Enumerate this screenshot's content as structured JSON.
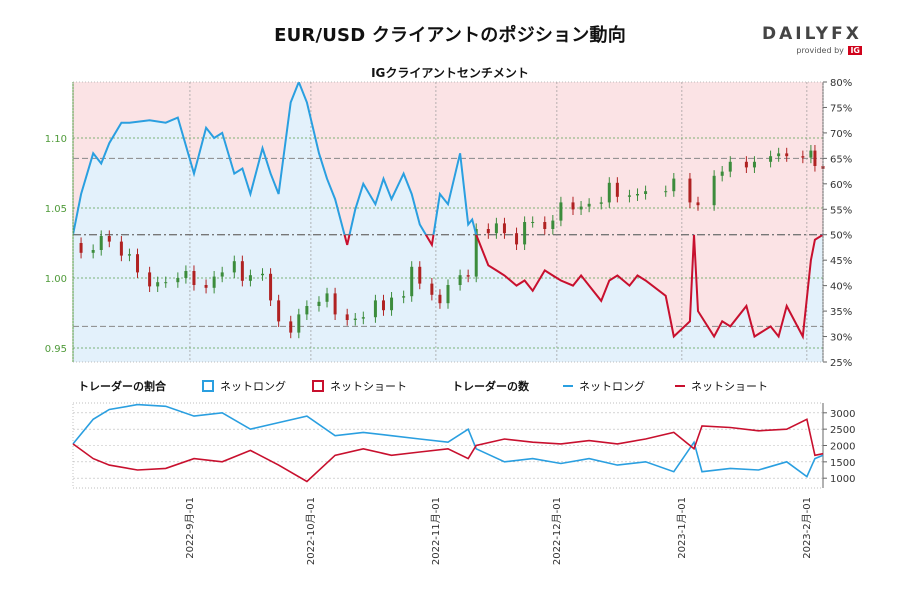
{
  "title": "EUR/USD クライアントのポジション動向",
  "brand": {
    "name_part1": "DAILY",
    "name_part2": "FX",
    "provided_by": "provided by",
    "provider": "IG"
  },
  "subtitle": "IGクライアントセンチメント",
  "legend": {
    "ratio_label": "トレーダーの割合",
    "ratio_long": "ネットロング",
    "ratio_short": "ネットショート",
    "count_label": "トレーダーの数",
    "count_long": "ネットロング",
    "count_short": "ネットショート"
  },
  "colors": {
    "long": "#2a9fe0",
    "short": "#c8102e",
    "long_fill": "#e3f1fb",
    "short_fill": "#fbe3e5",
    "candle_up": "#3c8c3c",
    "candle_down": "#b02222",
    "price_axis": "#4f9a3a"
  },
  "chart_data": [
    {
      "type": "line",
      "title": "IGクライアントセンチメント",
      "description_axes": "left axis: EUR/USD price; right axis: percent of clients net long",
      "price_axis": {
        "ticks": [
          "0.95",
          "1.00",
          "1.05",
          "1.10"
        ],
        "ylim": [
          0.94,
          1.14
        ]
      },
      "percent_axis": {
        "ticks": [
          "25%",
          "30%",
          "35%",
          "40%",
          "45%",
          "50%",
          "55%",
          "60%",
          "65%",
          "70%",
          "75%",
          "80%"
        ],
        "ylim": [
          25,
          80
        ]
      },
      "x_ticks": [
        "2022-9月-01",
        "2022-10月-01",
        "2022-11月-01",
        "2022-12月-01",
        "2023-1月-01",
        "2023-2月-01"
      ],
      "x_range": [
        "2022-08-03",
        "2023-02-05"
      ],
      "price_points": [
        [
          "2022-08-03",
          1.025
        ],
        [
          "2022-08-05",
          1.018
        ],
        [
          "2022-08-08",
          1.02
        ],
        [
          "2022-08-10",
          1.03
        ],
        [
          "2022-08-12",
          1.026
        ],
        [
          "2022-08-15",
          1.016
        ],
        [
          "2022-08-17",
          1.017
        ],
        [
          "2022-08-19",
          1.004
        ],
        [
          "2022-08-22",
          0.994
        ],
        [
          "2022-08-24",
          0.997
        ],
        [
          "2022-08-26",
          0.997
        ],
        [
          "2022-08-29",
          1.0
        ],
        [
          "2022-08-31",
          1.005
        ],
        [
          "2022-09-02",
          0.995
        ],
        [
          "2022-09-05",
          0.993
        ],
        [
          "2022-09-07",
          1.001
        ],
        [
          "2022-09-09",
          1.004
        ],
        [
          "2022-09-12",
          1.012
        ],
        [
          "2022-09-14",
          0.998
        ],
        [
          "2022-09-16",
          1.002
        ],
        [
          "2022-09-19",
          1.003
        ],
        [
          "2022-09-21",
          0.984
        ],
        [
          "2022-09-23",
          0.969
        ],
        [
          "2022-09-26",
          0.961
        ],
        [
          "2022-09-28",
          0.974
        ],
        [
          "2022-09-30",
          0.98
        ],
        [
          "2022-10-03",
          0.983
        ],
        [
          "2022-10-05",
          0.989
        ],
        [
          "2022-10-07",
          0.974
        ],
        [
          "2022-10-10",
          0.97
        ],
        [
          "2022-10-12",
          0.971
        ],
        [
          "2022-10-14",
          0.972
        ],
        [
          "2022-10-17",
          0.984
        ],
        [
          "2022-10-19",
          0.977
        ],
        [
          "2022-10-21",
          0.986
        ],
        [
          "2022-10-24",
          0.987
        ],
        [
          "2022-10-26",
          1.008
        ],
        [
          "2022-10-28",
          0.996
        ],
        [
          "2022-10-31",
          0.988
        ],
        [
          "2022-11-02",
          0.982
        ],
        [
          "2022-11-04",
          0.995
        ],
        [
          "2022-11-07",
          1.002
        ],
        [
          "2022-11-09",
          1.001
        ],
        [
          "2022-11-11",
          1.035
        ],
        [
          "2022-11-14",
          1.032
        ],
        [
          "2022-11-16",
          1.039
        ],
        [
          "2022-11-18",
          1.032
        ],
        [
          "2022-11-21",
          1.024
        ],
        [
          "2022-11-23",
          1.04
        ],
        [
          "2022-11-25",
          1.04
        ],
        [
          "2022-11-28",
          1.035
        ],
        [
          "2022-11-30",
          1.041
        ],
        [
          "2022-12-02",
          1.054
        ],
        [
          "2022-12-05",
          1.049
        ],
        [
          "2022-12-07",
          1.051
        ],
        [
          "2022-12-09",
          1.053
        ],
        [
          "2022-12-12",
          1.054
        ],
        [
          "2022-12-14",
          1.068
        ],
        [
          "2022-12-16",
          1.058
        ],
        [
          "2022-12-19",
          1.059
        ],
        [
          "2022-12-21",
          1.06
        ],
        [
          "2022-12-23",
          1.062
        ],
        [
          "2022-12-28",
          1.062
        ],
        [
          "2022-12-30",
          1.071
        ],
        [
          "2023-01-03",
          1.054
        ],
        [
          "2023-01-05",
          1.052
        ],
        [
          "2023-01-09",
          1.073
        ],
        [
          "2023-01-11",
          1.076
        ],
        [
          "2023-01-13",
          1.083
        ],
        [
          "2023-01-17",
          1.079
        ],
        [
          "2023-01-19",
          1.083
        ],
        [
          "2023-01-23",
          1.087
        ],
        [
          "2023-01-25",
          1.089
        ],
        [
          "2023-01-27",
          1.087
        ],
        [
          "2023-01-31",
          1.086
        ],
        [
          "2023-02-02",
          1.091
        ],
        [
          "2023-02-03",
          1.08
        ],
        [
          "2023-02-05",
          1.078
        ]
      ],
      "long_pct_points": [
        [
          "2022-08-03",
          50
        ],
        [
          "2022-08-05",
          58
        ],
        [
          "2022-08-08",
          66
        ],
        [
          "2022-08-10",
          64
        ],
        [
          "2022-08-12",
          68
        ],
        [
          "2022-08-15",
          72
        ],
        [
          "2022-08-17",
          72
        ],
        [
          "2022-08-22",
          72.5
        ],
        [
          "2022-08-26",
          72
        ],
        [
          "2022-08-29",
          73
        ],
        [
          "2022-09-02",
          62
        ],
        [
          "2022-09-05",
          71
        ],
        [
          "2022-09-07",
          69
        ],
        [
          "2022-09-09",
          70
        ],
        [
          "2022-09-12",
          62
        ],
        [
          "2022-09-14",
          63
        ],
        [
          "2022-09-16",
          58
        ],
        [
          "2022-09-19",
          67
        ],
        [
          "2022-09-21",
          62
        ],
        [
          "2022-09-23",
          58
        ],
        [
          "2022-09-26",
          76
        ],
        [
          "2022-09-28",
          80
        ],
        [
          "2022-09-30",
          76
        ],
        [
          "2022-10-03",
          66
        ],
        [
          "2022-10-05",
          61
        ],
        [
          "2022-10-07",
          57
        ],
        [
          "2022-10-10",
          48
        ],
        [
          "2022-10-12",
          55
        ],
        [
          "2022-10-14",
          60
        ],
        [
          "2022-10-17",
          56
        ],
        [
          "2022-10-19",
          61
        ],
        [
          "2022-10-21",
          57
        ],
        [
          "2022-10-24",
          62
        ],
        [
          "2022-10-26",
          58
        ],
        [
          "2022-10-28",
          52
        ],
        [
          "2022-10-31",
          48
        ],
        [
          "2022-11-02",
          58
        ],
        [
          "2022-11-04",
          56
        ],
        [
          "2022-11-07",
          66
        ],
        [
          "2022-11-09",
          52
        ],
        [
          "2022-11-10",
          53
        ],
        [
          "2022-11-11",
          50
        ],
        [
          "2022-11-14",
          44
        ],
        [
          "2022-11-16",
          43
        ],
        [
          "2022-11-18",
          42
        ],
        [
          "2022-11-21",
          40
        ],
        [
          "2022-11-23",
          41
        ],
        [
          "2022-11-25",
          39
        ],
        [
          "2022-11-28",
          43
        ],
        [
          "2022-11-30",
          42
        ],
        [
          "2022-12-02",
          41
        ],
        [
          "2022-12-05",
          40
        ],
        [
          "2022-12-07",
          42
        ],
        [
          "2022-12-09",
          40
        ],
        [
          "2022-12-12",
          37
        ],
        [
          "2022-12-14",
          41
        ],
        [
          "2022-12-16",
          42
        ],
        [
          "2022-12-19",
          40
        ],
        [
          "2022-12-21",
          42
        ],
        [
          "2022-12-23",
          41
        ],
        [
          "2022-12-28",
          38
        ],
        [
          "2022-12-30",
          30
        ],
        [
          "2023-01-03",
          33
        ],
        [
          "2023-01-04",
          50
        ],
        [
          "2023-01-05",
          35
        ],
        [
          "2023-01-09",
          30
        ],
        [
          "2023-01-11",
          33
        ],
        [
          "2023-01-13",
          32
        ],
        [
          "2023-01-17",
          36
        ],
        [
          "2023-01-19",
          30
        ],
        [
          "2023-01-23",
          32
        ],
        [
          "2023-01-25",
          30
        ],
        [
          "2023-01-27",
          36
        ],
        [
          "2023-01-31",
          30
        ],
        [
          "2023-02-02",
          45
        ],
        [
          "2023-02-03",
          49
        ],
        [
          "2023-02-05",
          50
        ]
      ]
    },
    {
      "type": "line",
      "title": "トレーダーの数",
      "y_ticks": [
        "1000",
        "1500",
        "2000",
        "2500",
        "3000"
      ],
      "ylim": [
        700,
        3300
      ],
      "series": [
        {
          "name": "ネットロング",
          "points": [
            [
              "2022-08-03",
              2050
            ],
            [
              "2022-08-08",
              2800
            ],
            [
              "2022-08-12",
              3100
            ],
            [
              "2022-08-19",
              3250
            ],
            [
              "2022-08-26",
              3200
            ],
            [
              "2022-09-02",
              2900
            ],
            [
              "2022-09-09",
              3000
            ],
            [
              "2022-09-16",
              2500
            ],
            [
              "2022-09-23",
              2700
            ],
            [
              "2022-09-30",
              2900
            ],
            [
              "2022-10-07",
              2300
            ],
            [
              "2022-10-14",
              2400
            ],
            [
              "2022-10-21",
              2300
            ],
            [
              "2022-10-28",
              2200
            ],
            [
              "2022-11-04",
              2100
            ],
            [
              "2022-11-09",
              2500
            ],
            [
              "2022-11-11",
              1900
            ],
            [
              "2022-11-18",
              1500
            ],
            [
              "2022-11-25",
              1600
            ],
            [
              "2022-12-02",
              1450
            ],
            [
              "2022-12-09",
              1600
            ],
            [
              "2022-12-16",
              1400
            ],
            [
              "2022-12-23",
              1500
            ],
            [
              "2022-12-30",
              1200
            ],
            [
              "2023-01-04",
              2100
            ],
            [
              "2023-01-06",
              1200
            ],
            [
              "2023-01-13",
              1300
            ],
            [
              "2023-01-20",
              1250
            ],
            [
              "2023-01-27",
              1500
            ],
            [
              "2023-02-01",
              1050
            ],
            [
              "2023-02-03",
              1600
            ],
            [
              "2023-02-05",
              1700
            ]
          ]
        },
        {
          "name": "ネットショート",
          "points": [
            [
              "2022-08-03",
              2050
            ],
            [
              "2022-08-08",
              1600
            ],
            [
              "2022-08-12",
              1400
            ],
            [
              "2022-08-19",
              1250
            ],
            [
              "2022-08-26",
              1300
            ],
            [
              "2022-09-02",
              1600
            ],
            [
              "2022-09-09",
              1500
            ],
            [
              "2022-09-16",
              1850
            ],
            [
              "2022-09-23",
              1400
            ],
            [
              "2022-09-30",
              900
            ],
            [
              "2022-10-07",
              1700
            ],
            [
              "2022-10-14",
              1900
            ],
            [
              "2022-10-21",
              1700
            ],
            [
              "2022-10-28",
              1800
            ],
            [
              "2022-11-04",
              1900
            ],
            [
              "2022-11-09",
              1600
            ],
            [
              "2022-11-11",
              2000
            ],
            [
              "2022-11-18",
              2200
            ],
            [
              "2022-11-25",
              2100
            ],
            [
              "2022-12-02",
              2050
            ],
            [
              "2022-12-09",
              2150
            ],
            [
              "2022-12-16",
              2050
            ],
            [
              "2022-12-23",
              2200
            ],
            [
              "2022-12-30",
              2400
            ],
            [
              "2023-01-04",
              1900
            ],
            [
              "2023-01-06",
              2600
            ],
            [
              "2023-01-13",
              2550
            ],
            [
              "2023-01-20",
              2450
            ],
            [
              "2023-01-27",
              2500
            ],
            [
              "2023-02-01",
              2800
            ],
            [
              "2023-02-03",
              1700
            ],
            [
              "2023-02-05",
              1750
            ]
          ]
        }
      ]
    }
  ]
}
